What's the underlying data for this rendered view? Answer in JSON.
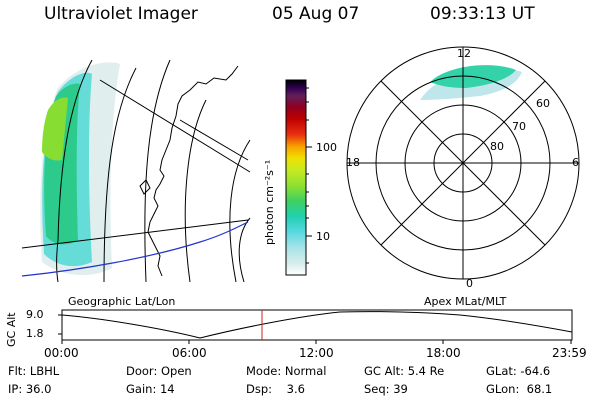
{
  "header": {
    "instrument": "Ultraviolet Imager",
    "date": "05 Aug 07",
    "time": "09:33:13 UT"
  },
  "colorbar": {
    "unit_label": "photon cm⁻²s⁻¹",
    "ticks": [
      "100",
      "10"
    ],
    "scale": "log",
    "colors": [
      "#ffffff",
      "#d8ecec",
      "#a8e4e8",
      "#5ad8e0",
      "#20d0b0",
      "#40d060",
      "#90e030",
      "#c8ea20",
      "#f0e000",
      "#f8a000",
      "#e83010",
      "#c00000",
      "#900020",
      "#60205a",
      "#300050",
      "#000000"
    ]
  },
  "polar": {
    "hour_labels": [
      "12",
      "18",
      "6",
      "0"
    ],
    "lat_labels": [
      "60",
      "70",
      "80"
    ]
  },
  "panel_labels": {
    "left": "Geographic Lat/Lon",
    "right": "Apex MLat/MLT"
  },
  "alt_plot": {
    "axis_title": "GC Alt",
    "y_ticks": [
      "9.0",
      "1.8"
    ],
    "x_ticks": [
      "00:00",
      "06:00",
      "12:00",
      "18:00",
      "23:59"
    ],
    "marker_color": "#cc2222"
  },
  "info": {
    "row1": [
      "Flt: LBHL",
      "Door: Open",
      "Mode: Normal",
      "GC Alt: 5.4 Re",
      "GLat: -64.6"
    ],
    "row2": [
      "IP: 36.0",
      "Gain: 14",
      "Dsp:    3.6",
      "Seq: 39",
      "GLon:  68.1"
    ]
  }
}
